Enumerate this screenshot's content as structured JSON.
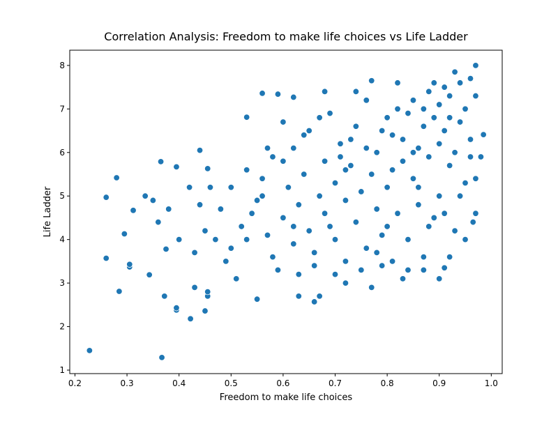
{
  "chart_data": {
    "type": "scatter",
    "title": "Correlation Analysis: Freedom to make life choices vs Life Ladder",
    "x_label": "Freedom to make life choices",
    "y_label": "Life Ladder",
    "color": "#1f77b4",
    "xlim": [
      0.19,
      1.021
    ],
    "ylim": [
      0.92,
      8.35
    ],
    "xticks": [
      0.2,
      0.3,
      0.4,
      0.5,
      0.6,
      0.7,
      0.8,
      0.9,
      {
        "value": 1,
        "label": "1.0"
      }
    ],
    "yticks": [
      1,
      2,
      3,
      4,
      5,
      6,
      7,
      8
    ],
    "x": [
      0.228,
      0.367,
      0.422,
      0.395,
      0.395,
      0.26,
      0.26,
      0.28,
      0.285,
      0.295,
      0.305,
      0.305,
      0.312,
      0.335,
      0.343,
      0.365,
      0.372,
      0.375,
      0.395,
      0.43,
      0.45,
      0.455,
      0.455,
      0.44,
      0.455,
      0.53,
      0.56,
      0.59,
      0.62,
      0.6,
      0.55,
      0.63,
      0.66,
      0.67,
      0.77,
      0.72,
      0.83,
      0.9,
      0.91,
      0.97,
      0.93,
      0.985,
      0.98,
      0.965,
      0.48,
      0.5,
      0.52,
      0.5,
      0.53,
      0.55,
      0.56,
      0.57,
      0.58,
      0.58,
      0.6,
      0.61,
      0.62,
      0.62,
      0.63,
      0.64,
      0.65,
      0.65,
      0.66,
      0.67,
      0.68,
      0.68,
      0.69,
      0.7,
      0.7,
      0.71,
      0.72,
      0.72,
      0.73,
      0.74,
      0.74,
      0.75,
      0.76,
      0.76,
      0.77,
      0.78,
      0.78,
      0.79,
      0.8,
      0.8,
      0.81,
      0.81,
      0.82,
      0.82,
      0.83,
      0.83,
      0.84,
      0.84,
      0.85,
      0.85,
      0.86,
      0.86,
      0.87,
      0.87,
      0.88,
      0.88,
      0.89,
      0.89,
      0.9,
      0.9,
      0.9,
      0.91,
      0.91,
      0.92,
      0.92,
      0.93,
      0.93,
      0.94,
      0.94,
      0.95,
      0.95,
      0.96,
      0.96,
      0.97,
      0.97,
      0.68,
      0.74,
      0.77,
      0.82,
      0.54,
      0.46,
      0.47,
      0.44,
      0.42,
      0.4,
      0.38,
      0.36,
      0.35,
      0.49,
      0.51,
      0.59,
      0.63,
      0.66,
      0.7,
      0.75,
      0.79,
      0.84,
      0.87,
      0.92,
      0.95,
      0.97,
      0.6,
      0.57,
      0.64,
      0.67,
      0.71,
      0.73,
      0.76,
      0.79,
      0.81,
      0.86,
      0.88,
      0.91,
      0.94,
      0.96,
      0.85,
      0.87,
      0.89,
      0.92,
      0.8,
      0.78,
      0.72,
      0.69,
      0.62,
      0.56,
      0.53,
      0.45,
      0.43
    ],
    "values": [
      1.45,
      1.29,
      2.18,
      2.38,
      2.43,
      3.57,
      4.97,
      5.42,
      2.81,
      4.13,
      3.37,
      3.43,
      4.67,
      5.0,
      3.19,
      5.79,
      2.7,
      3.78,
      5.67,
      2.9,
      2.36,
      2.7,
      2.8,
      6.05,
      5.63,
      6.81,
      7.36,
      7.34,
      7.27,
      6.7,
      2.63,
      2.7,
      2.57,
      2.7,
      2.9,
      3.0,
      3.1,
      3.1,
      3.35,
      8.0,
      7.85,
      6.41,
      5.9,
      4.4,
      4.7,
      5.2,
      4.3,
      3.8,
      5.6,
      4.9,
      5.4,
      4.1,
      5.9,
      3.6,
      4.5,
      5.2,
      6.1,
      3.9,
      4.8,
      5.5,
      6.5,
      4.2,
      3.4,
      5.0,
      5.8,
      4.6,
      6.9,
      4.0,
      5.3,
      6.2,
      4.9,
      3.5,
      5.7,
      4.4,
      6.6,
      5.1,
      3.8,
      7.2,
      5.5,
      4.7,
      6.0,
      4.1,
      6.8,
      5.2,
      3.5,
      6.4,
      4.6,
      7.0,
      5.8,
      6.3,
      4.0,
      6.9,
      5.4,
      7.2,
      6.1,
      4.8,
      6.6,
      3.6,
      7.4,
      5.9,
      6.8,
      4.5,
      7.1,
      6.2,
      5.0,
      7.5,
      6.5,
      5.7,
      7.3,
      6.0,
      4.2,
      7.6,
      6.7,
      5.3,
      7.0,
      6.3,
      7.7,
      5.4,
      7.3,
      7.4,
      7.4,
      7.65,
      7.6,
      4.6,
      5.2,
      4.0,
      4.8,
      5.2,
      4.0,
      4.7,
      4.4,
      4.9,
      3.5,
      3.1,
      3.3,
      3.2,
      3.7,
      3.2,
      3.3,
      3.4,
      3.3,
      3.3,
      3.6,
      4.0,
      4.6,
      5.8,
      6.1,
      6.4,
      6.8,
      5.9,
      6.3,
      6.1,
      6.5,
      5.6,
      5.2,
      4.3,
      4.6,
      5.0,
      5.9,
      6.0,
      7.0,
      7.6,
      6.8,
      4.3,
      3.7,
      5.6,
      4.3,
      4.3,
      5.0,
      4.0,
      4.2,
      3.7
    ]
  }
}
